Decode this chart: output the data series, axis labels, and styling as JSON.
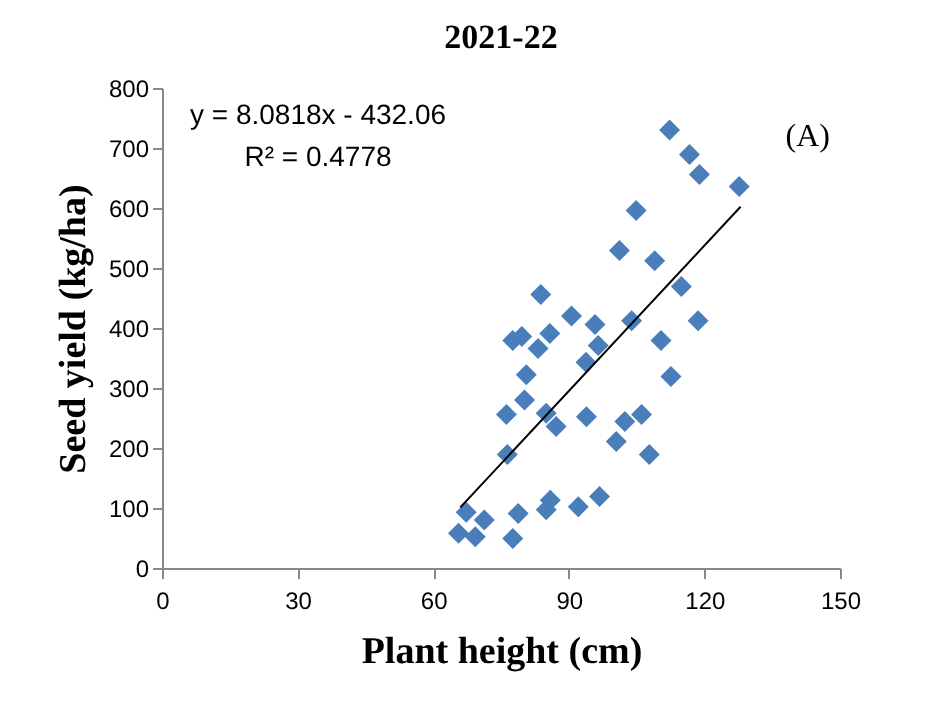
{
  "chart_data": {
    "type": "scatter",
    "title": "2021-22",
    "xlabel": "Plant height (cm)",
    "ylabel": "Seed yield (kg/ha)",
    "xlim": [
      0,
      150
    ],
    "xticks": [
      0,
      30,
      60,
      90,
      120,
      150
    ],
    "ylim": [
      0,
      800
    ],
    "yticks": [
      0,
      100,
      200,
      300,
      400,
      500,
      600,
      700,
      800
    ],
    "grid": false,
    "marker": "diamond",
    "annotations": [
      "y = 8.0818x - 432.06",
      "R² = 0.4778",
      "(A)"
    ],
    "series": [
      {
        "color": "#4a7ebb",
        "x": [
          112.3,
          116.7,
          118.9,
          127.7,
          104.9,
          101.2,
          109.0,
          114.9,
          83.8,
          90.6,
          103.9,
          118.6,
          95.8,
          77.6,
          79.6,
          83.2,
          85.8,
          96.5,
          93.8,
          110.4,
          80.6,
          112.6,
          80.2,
          76.2,
          85.0,
          87.2,
          93.9,
          102.4,
          106.1,
          100.5,
          107.8,
          76.4,
          96.8,
          85.9,
          85.0,
          92.1,
          78.8,
          67.3,
          71.3,
          65.6,
          69.3,
          77.6
        ],
        "values": [
          730,
          689,
          656,
          636,
          596,
          529,
          512,
          469,
          456,
          420,
          412,
          412,
          406,
          379,
          386,
          366,
          391,
          371,
          343,
          379,
          322,
          319,
          280,
          256,
          258,
          236,
          252,
          244,
          256,
          211,
          189,
          189,
          119,
          113,
          97,
          102,
          91,
          93,
          80,
          58,
          52,
          49
        ]
      },
      {
        "type": "line",
        "color": "#000000",
        "line_style": "solid",
        "marker": "none",
        "x": [
          66,
          128
        ],
        "values": [
          101,
          602
        ]
      }
    ]
  }
}
